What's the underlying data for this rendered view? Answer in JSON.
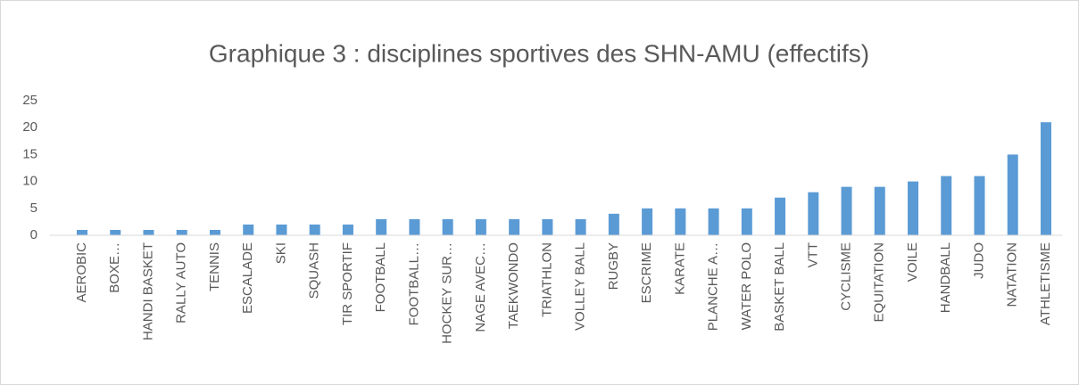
{
  "chart_data": {
    "type": "bar",
    "title": "Graphique 3 : disciplines sportives des SHN-AMU (effectifs)",
    "categories": [
      "AEROBIC",
      "BOXE…",
      "HANDI BASKET",
      "RALLY AUTO",
      "TENNIS",
      "ESCALADE",
      "SKI",
      "SQUASH",
      "TIR SPORTIF",
      "FOOTBALL",
      "FOOTBALL…",
      "HOCKEY SUR…",
      "NAGE AVEC…",
      "TAEKWONDO",
      "TRIATHLON",
      "VOLLEY BALL",
      "RUGBY",
      "ESCRIME",
      "KARATE",
      "PLANCHE A…",
      "WATER POLO",
      "BASKET BALL",
      "VTT",
      "CYCLISME",
      "EQUITATION",
      "VOILE",
      "HANDBALL",
      "JUDO",
      "NATATION",
      "ATHLETISME"
    ],
    "values": [
      1,
      1,
      1,
      1,
      1,
      2,
      2,
      2,
      2,
      3,
      3,
      3,
      3,
      3,
      3,
      3,
      4,
      5,
      5,
      5,
      5,
      7,
      8,
      9,
      9,
      10,
      11,
      11,
      15,
      21
    ],
    "color": "#5b9bd5",
    "ylim": [
      0,
      25
    ],
    "yticks": [
      0,
      5,
      10,
      15,
      20,
      25
    ],
    "grid": false
  }
}
